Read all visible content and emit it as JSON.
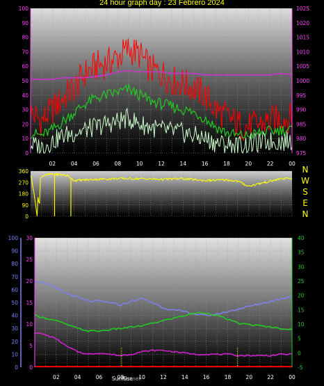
{
  "title": "24 hour graph day : 23 Febrero 2024",
  "colors": {
    "background": "#000000",
    "title": "#ffff00",
    "gust": "#ff0000",
    "wind_avg": "#22cc22",
    "wind_min": "#ccffcc",
    "pressure": "#cc33cc",
    "direction": "#ffff00",
    "humidity": "#8080ee",
    "dewpoint_temp": "#22cc22",
    "temperature": "#cc22cc",
    "rain": "#ff0000",
    "left_axis_purple": "#ff44ff",
    "left_axis_blue": "#8080ff",
    "right_axis_green": "#22cc22"
  },
  "x_tick_labels": [
    "02",
    "04",
    "06",
    "08",
    "10",
    "12",
    "14",
    "16",
    "18",
    "20",
    "22",
    "00"
  ],
  "sun_markers": {
    "sunrise_label": "SunRise",
    "sunset_label": "Sunset"
  },
  "compass_labels": [
    "N",
    "W",
    "S",
    "E",
    "N"
  ],
  "chart_data": [
    {
      "type": "line",
      "name": "wind",
      "ylim": [
        0,
        100
      ],
      "y_ticks": [
        0,
        10,
        20,
        30,
        40,
        50,
        60,
        70,
        80,
        90,
        100
      ],
      "y2lim": [
        975,
        1025
      ],
      "y2_ticks": [
        975,
        980,
        985,
        990,
        995,
        1000,
        1005,
        1010,
        1015,
        1020,
        1025
      ],
      "x": [
        0,
        1,
        2,
        3,
        4,
        5,
        6,
        7,
        8,
        9,
        10,
        11,
        12,
        13,
        14,
        15,
        16,
        17,
        18,
        19,
        20,
        21,
        22,
        23,
        24
      ],
      "series": [
        {
          "values": [
            28,
            22,
            30,
            38,
            45,
            55,
            60,
            62,
            66,
            72,
            68,
            58,
            55,
            50,
            48,
            45,
            40,
            30,
            25,
            20,
            18,
            20,
            22,
            24,
            24
          ]
        },
        {
          "values": [
            14,
            12,
            16,
            22,
            28,
            34,
            38,
            40,
            42,
            44,
            40,
            36,
            34,
            32,
            30,
            28,
            24,
            18,
            14,
            12,
            12,
            14,
            15,
            16,
            16
          ]
        },
        {
          "values": [
            6,
            4,
            8,
            12,
            14,
            16,
            18,
            20,
            22,
            24,
            20,
            18,
            16,
            15,
            14,
            12,
            10,
            7,
            6,
            5,
            6,
            7,
            8,
            8,
            8
          ]
        },
        {
          "axis": "y2",
          "values": [
            1000.5,
            1000.5,
            1000.5,
            1001,
            1001,
            1001,
            1001.5,
            1002,
            1003,
            1003.5,
            1003,
            1003,
            1003,
            1002.5,
            1002.5,
            1002.5,
            1002,
            1002,
            1002,
            1002,
            1002,
            1002,
            1002,
            1002.5,
            1002
          ]
        }
      ]
    },
    {
      "type": "line",
      "name": "wind direction",
      "ylim": [
        0,
        360
      ],
      "y_ticks": [
        0,
        90,
        180,
        270,
        360
      ],
      "x": [
        0,
        0.3,
        0.5,
        0.6,
        0.7,
        0.8,
        0.9,
        1,
        1.5,
        2,
        3,
        3.5,
        4,
        5,
        6,
        8,
        10,
        12,
        14,
        16,
        18,
        19,
        20,
        21,
        22,
        23,
        24
      ],
      "series": [
        {
          "values": [
            330,
            200,
            60,
            10,
            200,
            30,
            300,
            320,
            330,
            335,
            330,
            320,
            285,
            290,
            295,
            300,
            300,
            295,
            300,
            285,
            290,
            280,
            240,
            260,
            280,
            300,
            300
          ]
        }
      ]
    },
    {
      "type": "line",
      "name": "humidity temperature",
      "ylim": [
        0,
        100
      ],
      "y_ticks": [
        0,
        10,
        20,
        30,
        40,
        50,
        60,
        70,
        80,
        90,
        100
      ],
      "ylim_mid": [
        0,
        30
      ],
      "y_mid_ticks": [
        0,
        5,
        10,
        15,
        20,
        25,
        30
      ],
      "y2lim": [
        -5,
        40
      ],
      "y2_ticks": [
        -5,
        0,
        5,
        10,
        15,
        20,
        25,
        30,
        35,
        40
      ],
      "x": [
        0,
        1,
        2,
        3,
        4,
        5,
        6,
        7,
        8,
        9,
        10,
        11,
        12,
        13,
        14,
        15,
        16,
        17,
        18,
        19,
        20,
        21,
        22,
        23,
        24
      ],
      "series": [
        {
          "values": [
            67,
            65,
            61,
            57,
            54,
            51,
            51,
            50,
            48,
            51,
            53,
            50,
            46,
            44,
            43,
            41,
            40,
            41,
            43,
            45,
            47,
            49,
            51,
            53,
            55
          ]
        },
        {
          "values": [
            40,
            38,
            36,
            33,
            30,
            28,
            28,
            29,
            30,
            31,
            32,
            34,
            36,
            38,
            40,
            42,
            42,
            40,
            37,
            34,
            33,
            32,
            31,
            30,
            29
          ]
        },
        {
          "values": [
            27,
            25,
            22,
            16,
            12,
            10,
            11,
            10,
            9,
            10,
            12,
            13,
            13,
            12,
            11,
            10,
            10,
            10,
            10,
            9,
            9,
            9,
            9,
            10,
            10
          ]
        },
        {
          "values": [
            0.5,
            0.5,
            0.5,
            0.5,
            0.5,
            0.5,
            0.5,
            0.5,
            0.5,
            0.5,
            0.5,
            0.5,
            0.5,
            0.5,
            0.5,
            0.5,
            0.5,
            0.5,
            0.5,
            0.5,
            0.5,
            0.5,
            0.5,
            0.5,
            0.5
          ]
        }
      ]
    }
  ]
}
